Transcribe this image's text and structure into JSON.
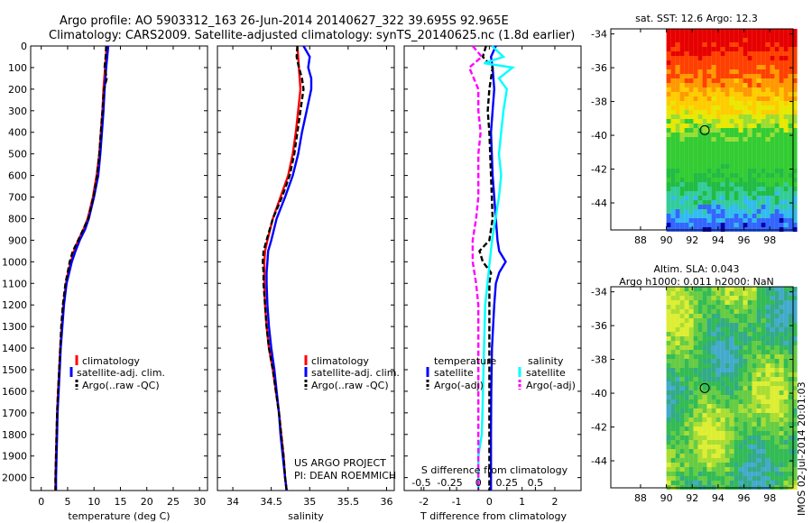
{
  "header": {
    "line1": "Argo profile: AO 5903312_163 26-Jun-2014 20140627_322 39.695S 92.965E",
    "line2": "Climatology: CARS2009. Satellite-adjusted climatology: synTS_20140625.nc (1.8d earlier)"
  },
  "colors": {
    "climatology": "#ff0000",
    "satellite": "#0000ff",
    "argo": "#000000",
    "satellite_salinity": "#00ffff",
    "argo_salinity_adj": "#ff00ff"
  },
  "depth_ticks": [
    "0",
    "100",
    "200",
    "300",
    "400",
    "500",
    "600",
    "700",
    "800",
    "900",
    "1000",
    "1100",
    "1200",
    "1300",
    "1400",
    "1500",
    "1600",
    "1700",
    "1800",
    "1900",
    "2000"
  ],
  "temp_panel": {
    "xlabel": "temperature (deg C)",
    "xticks": [
      "0",
      "5",
      "10",
      "15",
      "20",
      "25",
      "30"
    ],
    "xlim": [
      -2,
      31.5
    ],
    "legend": [
      "climatology",
      "satellite-adj. clim.",
      "Argo(..raw -QC)"
    ]
  },
  "sal_panel": {
    "xlabel": "salinity",
    "xticks": [
      "34",
      "34.5",
      "35",
      "35.5",
      "36"
    ],
    "xlim": [
      33.8,
      36.1
    ],
    "legend": [
      "climatology",
      "satellite-adj. clim.",
      "Argo(..raw -QC)"
    ],
    "credit1": "US ARGO PROJECT",
    "credit2": "PI: DEAN ROEMMICH"
  },
  "diff_panel": {
    "xlabel": "T difference from climatology",
    "xticks": [
      "-2",
      "-1",
      "0",
      "1",
      "2"
    ],
    "xlim": [
      -2.6,
      2.8
    ],
    "s_title": "S difference from climatology",
    "s_ticks": [
      "-0.5",
      "-0.25",
      "0",
      "0.25",
      "0.5"
    ],
    "legend_t_title": "temperature",
    "legend_s_title": "salinity",
    "legend_t": [
      "satellite",
      "Argo(-adj)"
    ],
    "legend_s": [
      "satellite",
      "Argo(-adj)"
    ]
  },
  "map_top": {
    "title": "sat. SST: 12.6 Argo: 12.3",
    "yticks": [
      "-34",
      "-36",
      "-38",
      "-40",
      "-42",
      "-44"
    ],
    "xticks": [
      "88",
      "90",
      "92",
      "94",
      "96",
      "98"
    ]
  },
  "map_bottom": {
    "title1": "Altim. SLA: 0.043",
    "title2": "Argo h1000: 0.011 h2000: NaN",
    "yticks": [
      "-34",
      "-36",
      "-38",
      "-40",
      "-42",
      "-44"
    ],
    "xticks": [
      "88",
      "90",
      "92",
      "94",
      "96",
      "98"
    ]
  },
  "side_label": "IMOS 02-Jul-2014 20:01:03",
  "chart_data": [
    {
      "type": "line",
      "title": "",
      "xlabel": "temperature (deg C)",
      "ylabel": "",
      "ylim": [
        2060,
        0
      ],
      "series": [
        {
          "name": "climatology",
          "depth": [
            0,
            100,
            200,
            300,
            400,
            500,
            600,
            700,
            800,
            850,
            900,
            950,
            1000,
            1050,
            1100,
            1200,
            1300,
            1400,
            1500,
            1600,
            1700,
            1800,
            1900,
            2000,
            2060
          ],
          "values": [
            12.4,
            12.1,
            11.8,
            11.6,
            11.3,
            11.0,
            10.5,
            9.8,
            8.8,
            8.0,
            7.0,
            6.2,
            5.6,
            5.1,
            4.7,
            4.2,
            3.9,
            3.6,
            3.4,
            3.2,
            3.0,
            2.9,
            2.8,
            2.7,
            2.7
          ]
        },
        {
          "name": "satellite-adj. clim.",
          "depth": [
            0,
            100,
            200,
            300,
            400,
            500,
            600,
            700,
            800,
            850,
            900,
            950,
            1000,
            1050,
            1100,
            1200,
            1300,
            1400,
            1500,
            1600,
            1700,
            1800,
            1900,
            2000,
            2060
          ],
          "values": [
            12.7,
            12.3,
            12.0,
            11.8,
            11.5,
            11.2,
            10.8,
            10.0,
            9.0,
            8.3,
            7.3,
            6.5,
            5.8,
            5.3,
            4.8,
            4.3,
            4.0,
            3.7,
            3.5,
            3.3,
            3.1,
            3.0,
            2.9,
            2.8,
            2.8
          ]
        },
        {
          "name": "Argo(..raw -QC)",
          "depth": [
            0,
            50,
            100,
            150,
            200,
            300,
            400,
            500,
            600,
            700,
            800,
            900,
            950,
            1000,
            1050,
            1100,
            1200,
            1300,
            1400,
            1500,
            1600,
            1700,
            1800,
            1900,
            2000,
            2060
          ],
          "values": [
            12.3,
            12.2,
            12.0,
            12.4,
            11.9,
            11.6,
            11.3,
            11.0,
            10.6,
            9.9,
            8.9,
            7.0,
            6.0,
            5.4,
            5.0,
            4.6,
            4.1,
            3.8,
            3.6,
            3.4,
            3.2,
            3.0,
            2.9,
            2.8,
            2.7,
            2.7
          ]
        }
      ]
    },
    {
      "type": "line",
      "title": "",
      "xlabel": "salinity",
      "ylabel": "",
      "ylim": [
        2060,
        0
      ],
      "series": [
        {
          "name": "climatology",
          "depth": [
            0,
            100,
            200,
            300,
            400,
            500,
            600,
            700,
            800,
            900,
            950,
            1000,
            1050,
            1100,
            1200,
            1300,
            1400,
            1500,
            1600,
            1700,
            1800,
            1900,
            2000,
            2060
          ],
          "values": [
            34.84,
            34.86,
            34.88,
            34.85,
            34.82,
            34.78,
            34.72,
            34.62,
            34.52,
            34.45,
            34.42,
            34.41,
            34.41,
            34.41,
            34.42,
            34.44,
            34.47,
            34.52,
            34.56,
            34.6,
            34.63,
            34.66,
            34.68,
            34.7
          ]
        },
        {
          "name": "satellite-adj. clim.",
          "depth": [
            0,
            50,
            100,
            150,
            200,
            300,
            400,
            500,
            600,
            700,
            800,
            900,
            950,
            1000,
            1050,
            1100,
            1200,
            1300,
            1400,
            1500,
            1600,
            1700,
            1800,
            1900,
            2000,
            2060
          ],
          "values": [
            34.92,
            35.0,
            34.98,
            35.02,
            35.02,
            34.96,
            34.9,
            34.85,
            34.78,
            34.68,
            34.57,
            34.5,
            34.46,
            34.45,
            34.44,
            34.44,
            34.45,
            34.47,
            34.5,
            34.54,
            34.57,
            34.6,
            34.62,
            34.65,
            34.68,
            34.7
          ]
        },
        {
          "name": "Argo(..raw -QC)",
          "depth": [
            0,
            50,
            100,
            150,
            200,
            300,
            400,
            500,
            600,
            700,
            800,
            900,
            950,
            1000,
            1050,
            1100,
            1200,
            1300,
            1400,
            1500,
            1600,
            1700,
            1800,
            1900,
            2000,
            2060
          ],
          "values": [
            34.84,
            34.83,
            34.86,
            34.9,
            34.92,
            34.88,
            34.84,
            34.8,
            34.74,
            34.64,
            34.52,
            34.44,
            34.4,
            34.39,
            34.4,
            34.4,
            34.42,
            34.44,
            34.47,
            34.52,
            34.56,
            34.6,
            34.63,
            34.66,
            34.68,
            34.7
          ]
        }
      ]
    },
    {
      "type": "line",
      "title": "",
      "xlabel": "T difference from climatology",
      "ylabel": "",
      "ylim": [
        2060,
        0
      ],
      "series": [
        {
          "name": "temperature satellite",
          "depth": [
            0,
            50,
            100,
            200,
            300,
            400,
            600,
            800,
            900,
            950,
            1000,
            1050,
            1100,
            1200,
            1400,
            1600,
            1800,
            2000,
            2060
          ],
          "values": [
            0.2,
            0.05,
            0.1,
            0.15,
            0.1,
            0.05,
            0.1,
            0.2,
            0.25,
            0.3,
            0.5,
            0.3,
            0.2,
            0.15,
            0.08,
            0.06,
            0.05,
            0.05,
            0.05
          ]
        },
        {
          "name": "temperature Argo(-adj)",
          "depth": [
            0,
            50,
            100,
            200,
            300,
            400,
            600,
            800,
            900,
            950,
            1000,
            1050,
            1100,
            1200,
            1400,
            1600,
            1800,
            2000,
            2060
          ],
          "values": [
            -0.1,
            -0.2,
            0.1,
            0.0,
            -0.05,
            0.0,
            0.05,
            0.1,
            0.0,
            -0.3,
            -0.2,
            0.05,
            0.0,
            0.0,
            0.0,
            0.0,
            0.0,
            0.0,
            0.0
          ]
        },
        {
          "name": "salinity satellite",
          "depth": [
            0,
            50,
            80,
            100,
            150,
            200,
            300,
            400,
            500,
            600,
            700,
            800,
            900,
            1000,
            1100,
            1200,
            1400,
            1600,
            1800,
            1900,
            2000,
            2060
          ],
          "values": [
            0.12,
            0.22,
            0.05,
            0.3,
            0.18,
            0.25,
            0.22,
            0.2,
            0.18,
            0.2,
            0.18,
            0.15,
            0.12,
            0.1,
            0.08,
            0.06,
            0.05,
            0.04,
            0.03,
            0.0,
            0.0,
            0.0
          ]
        },
        {
          "name": "salinity Argo(-adj)",
          "depth": [
            0,
            50,
            100,
            200,
            300,
            400,
            500,
            600,
            700,
            800,
            900,
            1000,
            1100,
            1200,
            1400,
            1600,
            1800,
            2000,
            2060
          ],
          "values": [
            -0.05,
            0.03,
            -0.08,
            0.0,
            0.0,
            0.02,
            0.0,
            0.0,
            0.0,
            -0.02,
            -0.05,
            -0.05,
            -0.02,
            0.0,
            0.0,
            0.0,
            0.0,
            0.0,
            0.0
          ]
        }
      ]
    }
  ]
}
